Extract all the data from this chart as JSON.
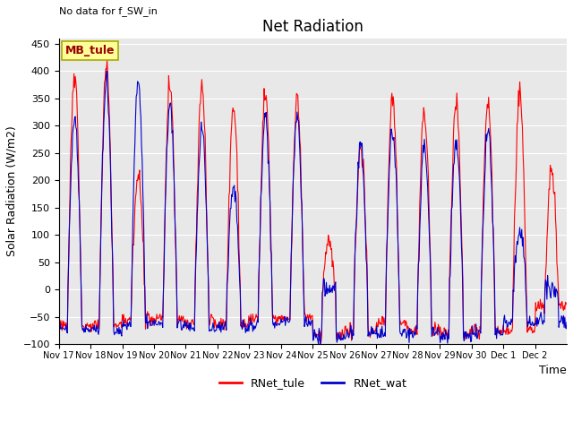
{
  "title": "Net Radiation",
  "annotation_text": "No data for f_SW_in",
  "ylabel": "Solar Radiation (W/m2)",
  "xlabel": "Time",
  "ylim": [
    -100,
    460
  ],
  "legend_box_label": "MB_tule",
  "legend_entries": [
    "RNet_tule",
    "RNet_wat"
  ],
  "legend_colors": [
    "#ff0000",
    "#0000cc"
  ],
  "bg_color": "#e8e8e8",
  "title_fontsize": 12,
  "axis_label_fontsize": 9,
  "tick_fontsize": 8,
  "n_days": 16,
  "yticks": [
    -100,
    -50,
    0,
    50,
    100,
    150,
    200,
    250,
    300,
    350,
    400,
    450
  ],
  "tick_labels": [
    "Nov 17",
    "Nov 18",
    "Nov 19",
    "Nov 20",
    "Nov 21",
    "Nov 22",
    "Nov 23",
    "Nov 24",
    "Nov 25",
    "Nov 26",
    "Nov 27",
    "Nov 28",
    "Nov 29",
    "Nov 30",
    "Dec 1",
    "Dec 2"
  ],
  "red_peaks": [
    400,
    410,
    210,
    370,
    375,
    335,
    360,
    340,
    80,
    265,
    355,
    330,
    340,
    345,
    360,
    215
  ],
  "blue_peaks": [
    315,
    385,
    385,
    340,
    295,
    185,
    315,
    315,
    5,
    260,
    300,
    260,
    265,
    295,
    105,
    0
  ],
  "night_base_red": [
    -65,
    -65,
    -55,
    -55,
    -60,
    -60,
    -55,
    -50,
    -85,
    -75,
    -60,
    -75,
    -80,
    -75,
    -75,
    -30
  ],
  "night_base_blue": [
    -75,
    -75,
    -65,
    -65,
    -70,
    -70,
    -65,
    -60,
    -90,
    -80,
    -80,
    -80,
    -85,
    -80,
    -60,
    -60
  ]
}
